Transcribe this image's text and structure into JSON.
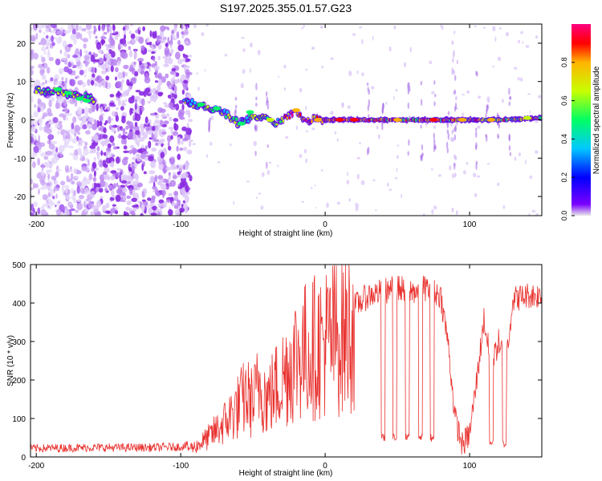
{
  "title": "S197.2025.355.01.57.G23",
  "colors": {
    "snr_line": "#e8312e",
    "colorbar_stops": [
      "#e8e8e8",
      "#7a00ff",
      "#0000ff",
      "#00c8ff",
      "#00ff64",
      "#c8ff00",
      "#ffb400",
      "#ff0000",
      "#ff0080"
    ]
  },
  "chart_data": [
    {
      "type": "heatmap",
      "name": "spectrogram",
      "title": "S197.2025.355.01.57.G23",
      "xlabel": "Height of straight line (km)",
      "ylabel": "Frequency (Hz)",
      "xlim": [
        -204,
        150
      ],
      "ylim": [
        -25,
        25
      ],
      "xticks": [
        -200,
        -100,
        0,
        100
      ],
      "yticks": [
        -20,
        -10,
        0,
        10,
        20
      ],
      "xtick_labels": [
        "-200",
        "-100",
        "0",
        "100"
      ],
      "ytick_labels": [
        "-20",
        "-10",
        "0",
        "10",
        "20"
      ],
      "colorbar": {
        "label": "Normalized spectral amplitude",
        "range": [
          0,
          1
        ],
        "ticks": [
          0.0,
          0.2,
          0.4,
          0.6,
          0.8
        ],
        "tick_labels": [
          "0.0",
          "0.2",
          "0.4",
          "0.6",
          "0.8"
        ]
      },
      "ridge": {
        "x": [
          -200,
          -180,
          -165,
          -160,
          -100,
          -95,
          -90,
          -80,
          -70,
          -60,
          -50,
          -40,
          -35,
          -30,
          -25,
          -20,
          -15,
          -10,
          0,
          20,
          40,
          60,
          80,
          100,
          120,
          150
        ],
        "freq": [
          8,
          7,
          6,
          5,
          5,
          4.5,
          4,
          3,
          2,
          -1,
          1,
          0,
          -1,
          0,
          1,
          2.5,
          0.5,
          0,
          0,
          0,
          0,
          0,
          0,
          0,
          0,
          0.5
        ]
      },
      "noise_regions": [
        {
          "x_from": -204,
          "x_to": -162,
          "level": "light"
        },
        {
          "x_from": -162,
          "x_to": -93,
          "level": "dense"
        }
      ]
    },
    {
      "type": "line",
      "name": "snr",
      "xlabel": "Height of straight line (km)",
      "ylabel": "SNR (10 * v/v)",
      "xlim": [
        -204,
        150
      ],
      "ylim": [
        0,
        500
      ],
      "xticks": [
        -200,
        -100,
        0,
        100
      ],
      "yticks": [
        0,
        100,
        200,
        300,
        400,
        500
      ],
      "xtick_labels": [
        "-200",
        "-100",
        "0",
        "100"
      ],
      "ytick_labels": [
        "0",
        "100",
        "200",
        "300",
        "400",
        "500"
      ],
      "envelope": {
        "x": [
          -204,
          -160,
          -120,
          -100,
          -90,
          -80,
          -70,
          -60,
          -55,
          -50,
          -45,
          -40,
          -35,
          -30,
          -25,
          -20,
          -10,
          0,
          10,
          20,
          30,
          40,
          50,
          60,
          70,
          80,
          85,
          90,
          95,
          100,
          105,
          110,
          115,
          120,
          125,
          130,
          140,
          150
        ],
        "y": [
          18,
          20,
          20,
          22,
          30,
          60,
          100,
          150,
          180,
          160,
          220,
          170,
          200,
          230,
          270,
          300,
          320,
          340,
          360,
          390,
          420,
          430,
          440,
          430,
          440,
          420,
          300,
          100,
          30,
          60,
          200,
          360,
          230,
          300,
          250,
          410,
          420,
          420
        ]
      },
      "dropouts": [
        {
          "x": 40,
          "y": 50
        },
        {
          "x": 48,
          "y": 50
        },
        {
          "x": 57,
          "y": 50
        },
        {
          "x": 66,
          "y": 50
        },
        {
          "x": 74,
          "y": 50
        },
        {
          "x": 115,
          "y": 40
        },
        {
          "x": 124,
          "y": 35
        }
      ]
    }
  ]
}
